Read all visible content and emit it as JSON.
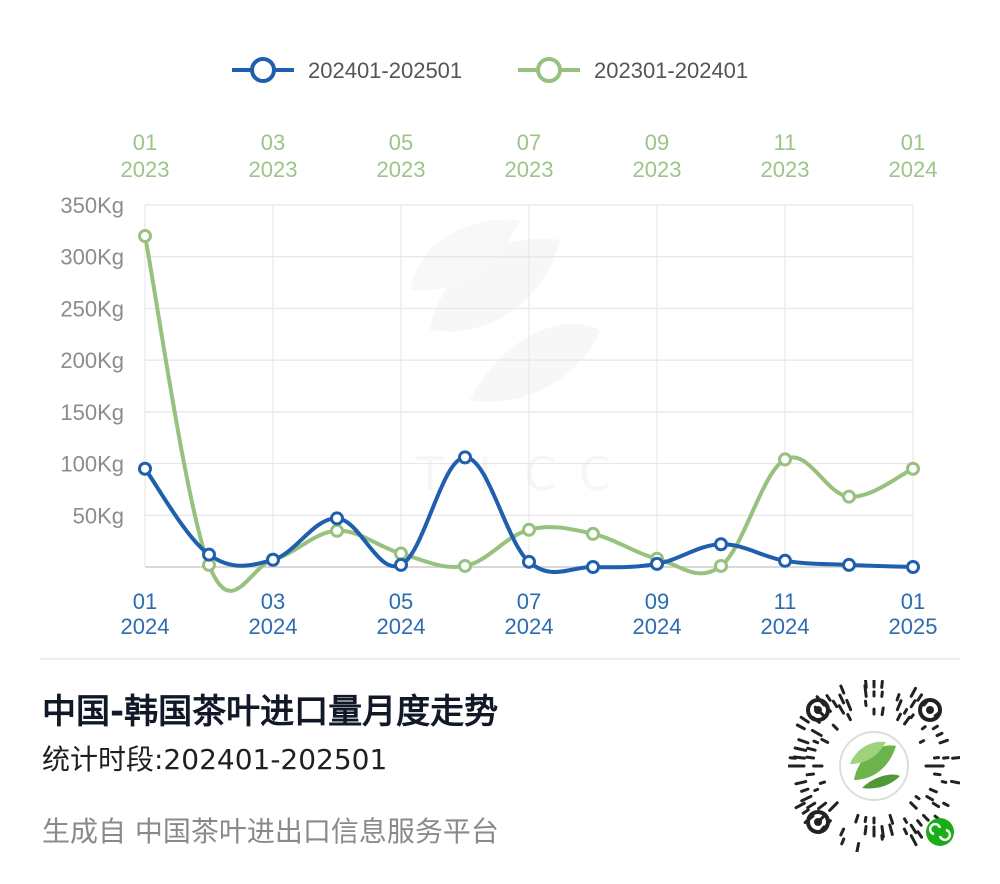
{
  "chart_data": {
    "type": "line",
    "legend": {
      "position": "top-center",
      "entries": [
        "202401-202501",
        "202301-202401"
      ]
    },
    "y_ticks": [
      "350Kg",
      "300Kg",
      "250Kg",
      "200Kg",
      "150Kg",
      "100Kg",
      "50Kg"
    ],
    "ylim": [
      0,
      350
    ],
    "grid": true,
    "x_bottom": {
      "ticks": [
        [
          "01",
          "2024"
        ],
        [
          "03",
          "2024"
        ],
        [
          "05",
          "2024"
        ],
        [
          "07",
          "2024"
        ],
        [
          "09",
          "2024"
        ],
        [
          "11",
          "2024"
        ],
        [
          "01",
          "2025"
        ]
      ]
    },
    "x_top": {
      "ticks": [
        [
          "01",
          "2023"
        ],
        [
          "03",
          "2023"
        ],
        [
          "05",
          "2023"
        ],
        [
          "07",
          "2023"
        ],
        [
          "09",
          "2023"
        ],
        [
          "11",
          "2023"
        ],
        [
          "01",
          "2024"
        ]
      ]
    },
    "series": [
      {
        "name": "202401-202501",
        "color": "#1f5fae",
        "axis": "bottom",
        "x": [
          "2024-01",
          "2024-02",
          "2024-03",
          "2024-04",
          "2024-05",
          "2024-06",
          "2024-07",
          "2024-08",
          "2024-09",
          "2024-10",
          "2024-11",
          "2024-12",
          "2025-01"
        ],
        "values": [
          95,
          12,
          7,
          47,
          2,
          106,
          5,
          0,
          3,
          22,
          6,
          2,
          0
        ]
      },
      {
        "name": "202301-202401",
        "color": "#97c17e",
        "axis": "top",
        "x": [
          "2023-01",
          "2023-02",
          "2023-03",
          "2023-04",
          "2023-05",
          "2023-06",
          "2023-07",
          "2023-08",
          "2023-09",
          "2023-10",
          "2023-11",
          "2023-12",
          "2024-01"
        ],
        "values": [
          320,
          2,
          7,
          35,
          13,
          1,
          36,
          32,
          8,
          1,
          104,
          68,
          95
        ]
      }
    ],
    "watermark": [
      "T",
      "I",
      "C",
      "C"
    ]
  },
  "footer": {
    "title": "中国-韩国茶叶进口量月度走势",
    "period": "统计时段:202401-202501",
    "source": "生成自 中国茶叶进出口信息服务平台"
  },
  "colors": {
    "blue": "#1f5fae",
    "blue_text": "#2b6cb0",
    "green": "#97c17e",
    "green_text": "#9cc585",
    "grid": "#e6e6e6",
    "axis_text": "#8c8c8c"
  },
  "icons": {
    "qr": "mini-program-qr-code-icon"
  }
}
